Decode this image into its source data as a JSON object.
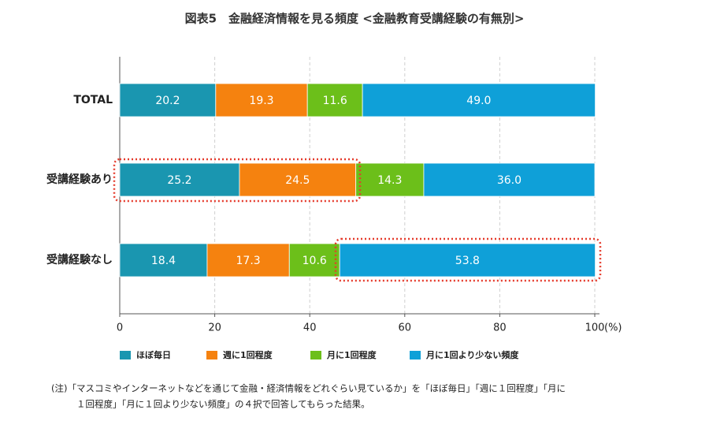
{
  "chart_data": {
    "type": "stacked-bar-horizontal",
    "title": "図表5　金融経済情報を見る頻度 <金融教育受講経験の有無別>",
    "categories": [
      "TOTAL",
      "受講経験あり",
      "受講経験なし"
    ],
    "series": [
      {
        "name": "ほぼ毎日",
        "color": "#1a96b0",
        "values": [
          20.2,
          25.2,
          18.4
        ]
      },
      {
        "name": "週に1回程度",
        "color": "#f5820f",
        "values": [
          19.3,
          24.5,
          17.3
        ]
      },
      {
        "name": "月に1回程度",
        "color": "#6cbf1a",
        "values": [
          11.6,
          14.3,
          10.6
        ]
      },
      {
        "name": "月に1回より少ない頻度",
        "color": "#0fa0d8",
        "values": [
          49.0,
          36.0,
          53.8
        ],
        "value_labels": [
          "49.0",
          "36.0",
          "53.8"
        ]
      }
    ],
    "xlim": [
      0,
      100
    ],
    "xticks": [
      0,
      20,
      40,
      60,
      80,
      100
    ],
    "xlabel": "(%)",
    "grid": true,
    "note": [
      "(注)「マスコミやインターネットなどを通じて金融・経済情報をどれぐらい見ているか」を「ほぼ毎日」「週に１回程度」「月に",
      "１回程度」「月に１回より少ない頻度」の４択で回答してもらった結果。"
    ]
  }
}
